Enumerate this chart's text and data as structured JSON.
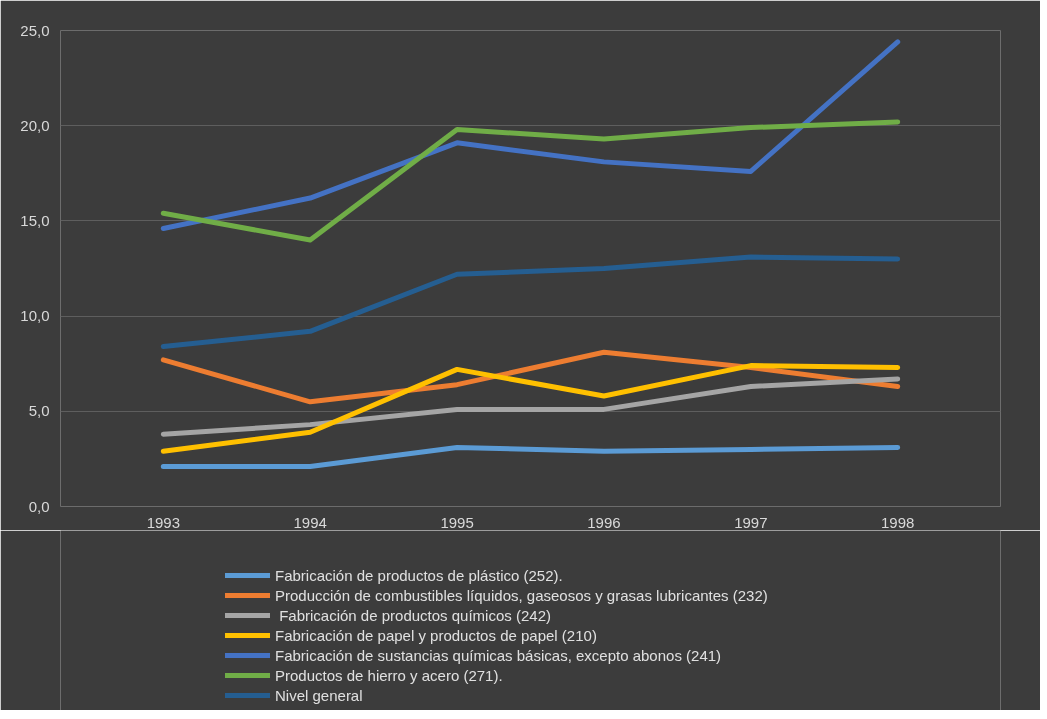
{
  "chart_data": {
    "type": "line",
    "categories": [
      "1993",
      "1994",
      "1995",
      "1996",
      "1997",
      "1998"
    ],
    "ylim": [
      0,
      25
    ],
    "yticks": [
      {
        "value": 0,
        "label": "0,0"
      },
      {
        "value": 5,
        "label": "5,0"
      },
      {
        "value": 10,
        "label": "10,0"
      },
      {
        "value": 15,
        "label": "15,0"
      },
      {
        "value": 20,
        "label": "20,0"
      },
      {
        "value": 25,
        "label": "25,0"
      }
    ],
    "grid": "y",
    "legend": "bottom",
    "marker": "none",
    "line_style": "solid",
    "series": [
      {
        "name": "Fabricación de productos de plástico (252).",
        "color": "#5b9bd5",
        "values": [
          2.1,
          2.1,
          3.1,
          2.9,
          3.0,
          3.1
        ]
      },
      {
        "name": "Producción de combustibles líquidos, gaseosos y grasas lubricantes (232)",
        "color": "#ed7d31",
        "values": [
          7.7,
          5.5,
          6.4,
          8.1,
          7.3,
          6.3
        ]
      },
      {
        "name": " Fabricación de productos químicos (242)",
        "color": "#a5a5a5",
        "values": [
          3.8,
          4.3,
          5.1,
          5.1,
          6.3,
          6.7
        ]
      },
      {
        "name": "Fabricación de papel y productos de papel (210)",
        "color": "#ffc000",
        "values": [
          2.9,
          3.9,
          7.2,
          5.8,
          7.4,
          7.3
        ]
      },
      {
        "name": "Fabricación de sustancias químicas básicas, excepto abonos (241)",
        "color": "#4472c4",
        "values": [
          14.6,
          16.2,
          19.1,
          18.1,
          17.6,
          24.4
        ]
      },
      {
        "name": "Productos de hierro y acero (271).",
        "color": "#70ad47",
        "values": [
          15.4,
          14.0,
          19.8,
          19.3,
          19.9,
          20.2
        ]
      },
      {
        "name": "Nivel general",
        "color": "#255e91",
        "values": [
          8.4,
          9.2,
          12.2,
          12.5,
          13.1,
          13.0
        ]
      }
    ]
  }
}
